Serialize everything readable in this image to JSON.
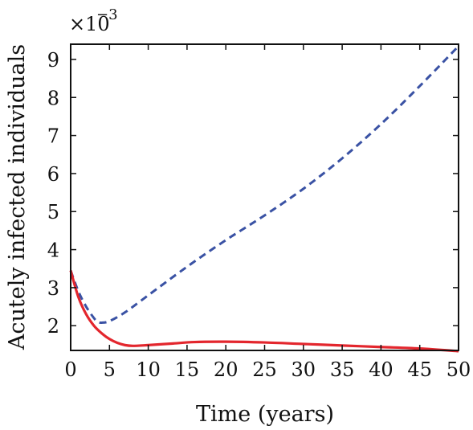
{
  "chart_data": {
    "type": "line",
    "xlabel": "Time (years)",
    "ylabel": "Acutely infected individuals",
    "y_multiplier_label": "×10",
    "y_multiplier_exponent": "−3",
    "xlim": [
      0,
      50
    ],
    "ylim": [
      1.35,
      9.4
    ],
    "x_ticks": [
      0,
      5,
      10,
      15,
      20,
      25,
      30,
      35,
      40,
      45,
      50
    ],
    "y_ticks": [
      2,
      3,
      4,
      5,
      6,
      7,
      8,
      9
    ],
    "grid": false,
    "series": [
      {
        "style": "dashed",
        "color": "#3a52a4",
        "x": [
          0,
          1,
          2,
          3,
          3.5,
          4,
          5,
          7,
          10,
          15,
          20,
          25,
          30,
          35,
          40,
          45,
          50
        ],
        "y": [
          3.45,
          2.9,
          2.5,
          2.2,
          2.1,
          2.08,
          2.12,
          2.35,
          2.8,
          3.55,
          4.25,
          4.9,
          5.6,
          6.4,
          7.3,
          8.3,
          9.35
        ]
      },
      {
        "style": "solid",
        "color": "#e3262d",
        "x": [
          0,
          1,
          2,
          3,
          4,
          5,
          6,
          7,
          8,
          10,
          13,
          16,
          20,
          25,
          30,
          35,
          40,
          45,
          50
        ],
        "y": [
          3.45,
          2.75,
          2.3,
          2.0,
          1.8,
          1.65,
          1.55,
          1.49,
          1.47,
          1.49,
          1.53,
          1.57,
          1.58,
          1.56,
          1.52,
          1.48,
          1.44,
          1.4,
          1.33
        ]
      }
    ]
  }
}
